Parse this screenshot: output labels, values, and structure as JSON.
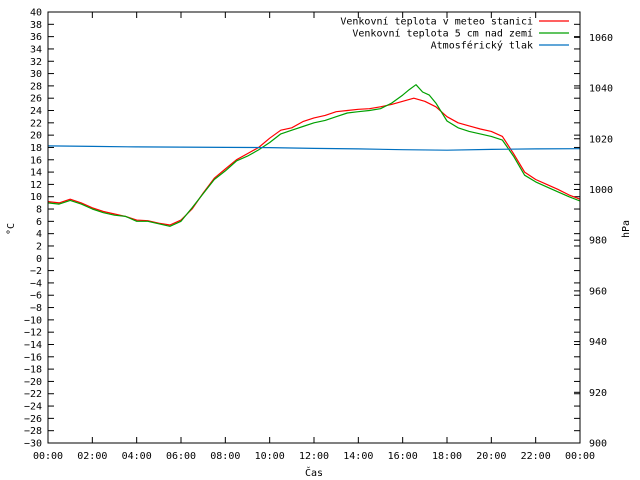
{
  "chart_data": {
    "type": "line",
    "title": "",
    "xlabel": "Čas",
    "ylabel": "°C",
    "y2label": "hPa",
    "xlim": [
      0,
      24
    ],
    "ylim": [
      -30,
      40
    ],
    "y2lim": [
      900,
      1070
    ],
    "x_ticks": [
      "00:00",
      "02:00",
      "04:00",
      "06:00",
      "08:00",
      "10:00",
      "12:00",
      "14:00",
      "16:00",
      "18:00",
      "20:00",
      "22:00",
      "00:00"
    ],
    "y_ticks": [
      40,
      38,
      36,
      34,
      32,
      30,
      28,
      26,
      24,
      22,
      20,
      18,
      16,
      14,
      12,
      10,
      8,
      6,
      4,
      2,
      0,
      -2,
      -4,
      -6,
      -8,
      -10,
      -12,
      -14,
      -16,
      -18,
      -20,
      -22,
      -24,
      -26,
      -28,
      -30
    ],
    "y2_ticks": [
      1060,
      1040,
      1020,
      1000,
      980,
      960,
      940,
      920,
      900
    ],
    "grid": false,
    "legend_position": "top-right",
    "series": [
      {
        "name": "Venkovní teplota v meteo stanici",
        "axis": "left",
        "color": "#ff0000",
        "x": [
          0,
          0.5,
          1,
          1.5,
          2,
          2.5,
          3,
          3.5,
          4,
          4.5,
          5,
          5.5,
          6,
          6.5,
          7,
          7.5,
          8,
          8.5,
          9,
          9.5,
          10,
          10.5,
          11,
          11.5,
          12,
          12.5,
          13,
          13.5,
          14,
          14.5,
          15,
          15.5,
          16,
          16.5,
          17,
          17.5,
          18,
          18.5,
          19,
          19.5,
          20,
          20.5,
          21,
          21.5,
          22,
          22.5,
          23,
          23.5,
          24
        ],
        "values": [
          9.2,
          9.0,
          9.6,
          9.0,
          8.2,
          7.6,
          7.2,
          6.8,
          6.2,
          6.1,
          5.7,
          5.4,
          6.2,
          8.0,
          10.6,
          13.0,
          14.5,
          16.0,
          17.0,
          18.0,
          19.5,
          20.8,
          21.2,
          22.2,
          22.8,
          23.2,
          23.8,
          24.0,
          24.2,
          24.3,
          24.6,
          25.0,
          25.5,
          26.0,
          25.5,
          24.6,
          23.0,
          22.0,
          21.5,
          21.0,
          20.6,
          19.8,
          17.0,
          14.0,
          12.8,
          12.0,
          11.2,
          10.3,
          9.6
        ]
      },
      {
        "name": "Venkovní teplota 5 cm nad zemí",
        "axis": "left",
        "color": "#00a000",
        "x": [
          0,
          0.5,
          1,
          1.5,
          2,
          2.5,
          3,
          3.5,
          4,
          4.5,
          5,
          5.5,
          6,
          6.5,
          7,
          7.5,
          8,
          8.5,
          9,
          9.5,
          10,
          10.5,
          11,
          11.5,
          12,
          12.5,
          13,
          13.5,
          14,
          14.5,
          15,
          15.5,
          16,
          16.3,
          16.6,
          16.9,
          17.2,
          17.5,
          18,
          18.5,
          19,
          19.5,
          20,
          20.5,
          21,
          21.5,
          22,
          22.5,
          23,
          23.5,
          24
        ],
        "values": [
          9.0,
          8.8,
          9.4,
          8.8,
          8.0,
          7.4,
          7.0,
          6.8,
          6.0,
          6.0,
          5.6,
          5.2,
          6.0,
          8.2,
          10.5,
          12.8,
          14.2,
          15.8,
          16.6,
          17.6,
          18.8,
          20.2,
          20.8,
          21.4,
          22.0,
          22.4,
          23.0,
          23.6,
          23.8,
          24.0,
          24.3,
          25.2,
          26.5,
          27.4,
          28.2,
          27.0,
          26.5,
          25.2,
          22.3,
          21.2,
          20.6,
          20.2,
          19.8,
          19.2,
          16.6,
          13.5,
          12.4,
          11.6,
          10.8,
          10.0,
          9.3
        ]
      },
      {
        "name": "Atmosférický tlak",
        "axis": "right",
        "color": "#0070c0",
        "x": [
          0,
          2,
          4,
          6,
          8,
          10,
          12,
          14,
          16,
          18,
          20,
          22,
          24
        ],
        "values": [
          1017.2,
          1017.0,
          1016.8,
          1016.7,
          1016.6,
          1016.5,
          1016.2,
          1016.0,
          1015.7,
          1015.5,
          1015.8,
          1016.0,
          1016.1
        ]
      }
    ]
  }
}
